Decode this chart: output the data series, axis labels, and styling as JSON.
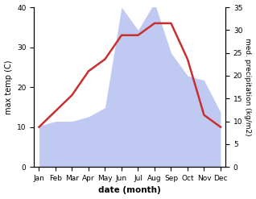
{
  "months": [
    "Jan",
    "Feb",
    "Mar",
    "Apr",
    "May",
    "Jun",
    "Jul",
    "Aug",
    "Sep",
    "Oct",
    "Nov",
    "Dec"
  ],
  "temperature": [
    10,
    14,
    18,
    24,
    27,
    33,
    33,
    36,
    36,
    27,
    13,
    10
  ],
  "precipitation": [
    9,
    10,
    10,
    11,
    13,
    35,
    30,
    36,
    25,
    20,
    19,
    12
  ],
  "temp_color": "#c83030",
  "precip_color_fill": "#b8c4f0",
  "title": "",
  "xlabel": "date (month)",
  "ylabel_left": "max temp (C)",
  "ylabel_right": "med. precipitation (kg/m2)",
  "ylim_left": [
    0,
    40
  ],
  "ylim_right": [
    0,
    35
  ],
  "yticks_left": [
    0,
    10,
    20,
    30,
    40
  ],
  "yticks_right": [
    0,
    5,
    10,
    15,
    20,
    25,
    30,
    35
  ],
  "temp_linewidth": 1.8,
  "bg_color": "#ffffff",
  "precip_scale": 1.1429
}
